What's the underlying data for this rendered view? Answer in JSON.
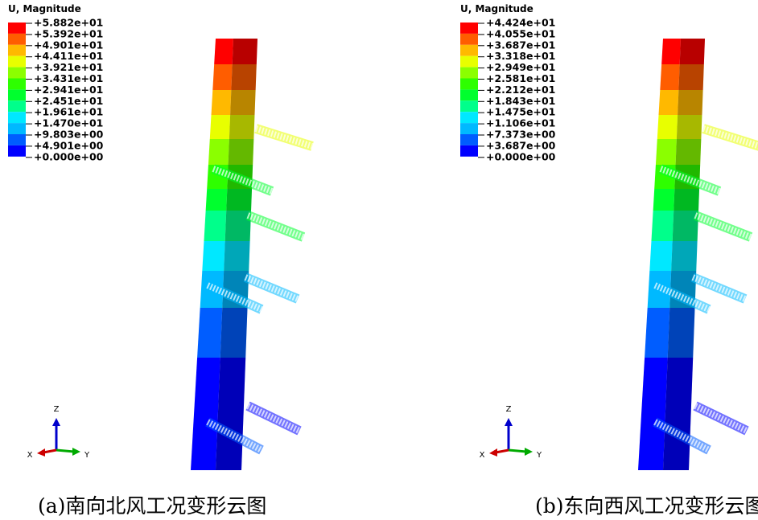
{
  "panels": [
    {
      "legend_title": "U, Magnitude",
      "legend_labels": [
        "+5.882e+01",
        "+5.392e+01",
        "+4.901e+01",
        "+4.411e+01",
        "+3.921e+01",
        "+3.431e+01",
        "+2.941e+01",
        "+2.451e+01",
        "+1.961e+01",
        "+1.470e+01",
        "+9.803e+00",
        "+4.901e+00",
        "+0.000e+00"
      ],
      "triad": {
        "z": "Z",
        "x": "X",
        "y": "Y"
      },
      "caption": "(a)南向北风工况变形云图"
    },
    {
      "legend_title": "U, Magnitude",
      "legend_labels": [
        "+4.424e+01",
        "+4.055e+01",
        "+3.687e+01",
        "+3.318e+01",
        "+2.949e+01",
        "+2.581e+01",
        "+2.212e+01",
        "+1.843e+01",
        "+1.475e+01",
        "+1.106e+01",
        "+7.373e+00",
        "+3.687e+00",
        "+0.000e+00"
      ],
      "triad": {
        "z": "Z",
        "x": "X",
        "y": "Y"
      },
      "caption": "(b)东向西风工况变形云图"
    }
  ]
}
